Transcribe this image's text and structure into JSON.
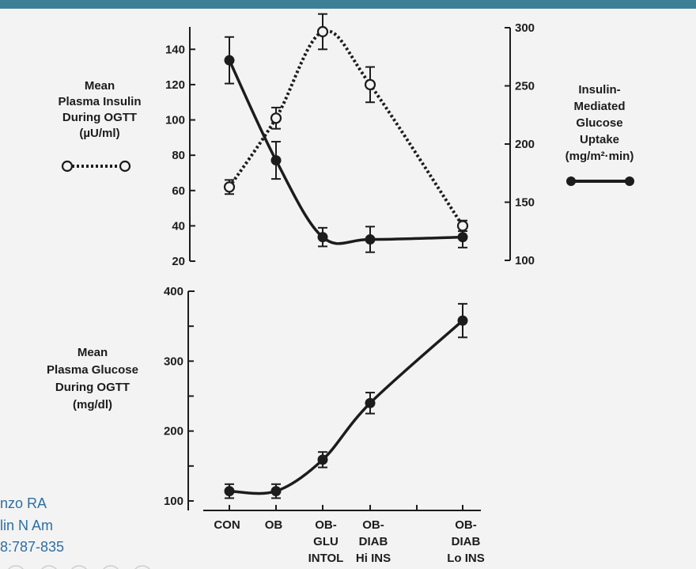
{
  "chart_data": [
    {
      "type": "line",
      "x_categories": [
        "CON",
        "OB",
        "OB-GLU INTOL",
        "OB-DIAB Hi INS",
        "OB-DIAB Lo INS"
      ],
      "left_axis": {
        "label_lines": [
          "Mean",
          "Plasma Insulin",
          "During OGTT",
          "(µU/ml)"
        ],
        "ylim": [
          20,
          150
        ],
        "ticks": [
          20,
          40,
          60,
          80,
          100,
          120,
          140
        ]
      },
      "right_axis": {
        "label_lines": [
          "Insulin-",
          "Mediated",
          "Glucose",
          "Uptake",
          "(mg/m²·min)"
        ],
        "ylim": [
          100,
          300
        ],
        "ticks": [
          100,
          150,
          200,
          250,
          300
        ]
      },
      "series": [
        {
          "axis": "left",
          "style": "dotted-open-circle",
          "values": [
            62,
            101,
            150,
            120,
            40
          ],
          "errors": [
            4,
            6,
            10,
            10,
            3
          ]
        },
        {
          "axis": "right",
          "style": "solid-filled-circle",
          "values": [
            272,
            186,
            120,
            118,
            120
          ],
          "errors": [
            20,
            16,
            8,
            11,
            9
          ]
        }
      ],
      "grid": false
    },
    {
      "type": "line",
      "x_categories": [
        "CON",
        "OB",
        "OB-GLU INTOL",
        "OB-DIAB Hi INS",
        "OB-DIAB Lo INS"
      ],
      "y_axis": {
        "label_lines": [
          "Mean",
          "Plasma Glucose",
          "During OGTT",
          "(mg/dl)"
        ],
        "ylim": [
          100,
          400
        ],
        "ticks": [
          100,
          200,
          300,
          400
        ]
      },
      "series": [
        {
          "style": "solid-filled-circle",
          "values": [
            114,
            114,
            159,
            240,
            358
          ],
          "errors": [
            10,
            10,
            11,
            15,
            24
          ]
        }
      ],
      "grid": false
    }
  ],
  "labels": {
    "insulin_axis": "Mean\nPlasma Insulin\nDuring OGTT\n(µU/ml)",
    "uptake_axis": "Insulin-\nMediated\nGlucose\nUptake\n(mg/m²·min)",
    "glucose_axis": "Mean\nPlasma Glucose\nDuring OGTT\n(mg/dl)"
  },
  "x_labels": [
    [
      "CON"
    ],
    [
      "OB"
    ],
    [
      "OB-",
      "GLU",
      "INTOL"
    ],
    [
      "OB-",
      "DIAB",
      "Hi INS"
    ],
    [
      "OB-",
      "DIAB",
      "Lo INS"
    ]
  ],
  "citation": {
    "line1": "nzo RA",
    "line2": "lin N Am",
    "line3": "8:787-835"
  },
  "colors": {
    "header_bar": "#3d7f97",
    "ink": "#1c1c1c",
    "citation": "#2e6fa0",
    "background": "#f3f3f3"
  }
}
